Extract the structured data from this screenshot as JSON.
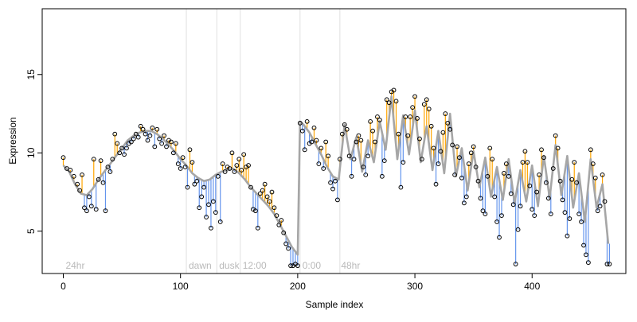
{
  "chart_data": {
    "type": "scatter",
    "xlabel": "Sample index",
    "ylabel": "Expression",
    "xlim": [
      -18,
      480
    ],
    "ylim": [
      2.3,
      19.2
    ],
    "x_ticks": [
      0,
      100,
      200,
      300,
      400
    ],
    "y_ticks": [
      5,
      10,
      15
    ],
    "grid": false,
    "colors": {
      "trend": "#a6a6a6",
      "above": "#ffa500",
      "below": "#6495ed",
      "points": "#000000",
      "separators": "#e0e0e0",
      "annotations": "#b9b9b9"
    },
    "annotations": [
      {
        "label": "24hr",
        "x": 2
      },
      {
        "label": "dawn",
        "x": 107
      },
      {
        "label": "dusk",
        "x": 133
      },
      {
        "label": "12:00",
        "x": 153
      },
      {
        "label": "0:00",
        "x": 204
      },
      {
        "label": "48hr",
        "x": 237
      }
    ],
    "separators_x": [
      105,
      131,
      151,
      202,
      236
    ],
    "trend": [
      [
        0,
        9.2
      ],
      [
        5,
        8.8
      ],
      [
        10,
        8.0
      ],
      [
        15,
        7.4
      ],
      [
        20,
        7.3
      ],
      [
        25,
        7.7
      ],
      [
        30,
        8.3
      ],
      [
        35,
        8.8
      ],
      [
        40,
        9.3
      ],
      [
        45,
        9.8
      ],
      [
        50,
        10.3
      ],
      [
        55,
        10.8
      ],
      [
        60,
        11.1
      ],
      [
        65,
        11.3
      ],
      [
        70,
        11.4
      ],
      [
        75,
        11.4
      ],
      [
        80,
        11.2
      ],
      [
        85,
        10.9
      ],
      [
        90,
        10.5
      ],
      [
        95,
        10.1
      ],
      [
        100,
        9.6
      ],
      [
        105,
        9.2
      ],
      [
        110,
        8.7
      ],
      [
        115,
        8.4
      ],
      [
        120,
        8.2
      ],
      [
        125,
        8.3
      ],
      [
        130,
        8.6
      ],
      [
        135,
        8.8
      ],
      [
        140,
        8.9
      ],
      [
        145,
        9.0
      ],
      [
        150,
        8.7
      ],
      [
        155,
        8.3
      ],
      [
        160,
        7.8
      ],
      [
        165,
        7.4
      ],
      [
        170,
        7.0
      ],
      [
        175,
        6.6
      ],
      [
        180,
        6.1
      ],
      [
        185,
        5.4
      ],
      [
        190,
        4.7
      ],
      [
        195,
        4.0
      ],
      [
        200,
        3.5
      ],
      [
        202,
        12.0
      ],
      [
        205,
        11.8
      ],
      [
        210,
        11.3
      ],
      [
        215,
        10.6
      ],
      [
        220,
        9.9
      ],
      [
        225,
        9.1
      ],
      [
        230,
        8.5
      ],
      [
        235,
        8.3
      ],
      [
        240,
        11.8
      ],
      [
        245,
        9.6
      ],
      [
        250,
        11.0
      ],
      [
        255,
        8.8
      ],
      [
        260,
        10.8
      ],
      [
        265,
        9.4
      ],
      [
        270,
        12.0
      ],
      [
        275,
        10.2
      ],
      [
        280,
        13.6
      ],
      [
        285,
        9.6
      ],
      [
        290,
        12.4
      ],
      [
        295,
        9.9
      ],
      [
        300,
        12.7
      ],
      [
        305,
        9.4
      ],
      [
        310,
        11.7
      ],
      [
        315,
        8.9
      ],
      [
        320,
        11.4
      ],
      [
        325,
        8.7
      ],
      [
        330,
        12.5
      ],
      [
        335,
        8.5
      ],
      [
        340,
        10.3
      ],
      [
        345,
        7.6
      ],
      [
        350,
        10.1
      ],
      [
        355,
        7.8
      ],
      [
        360,
        9.7
      ],
      [
        365,
        7.2
      ],
      [
        370,
        9.1
      ],
      [
        375,
        7.0
      ],
      [
        380,
        9.6
      ],
      [
        385,
        6.8
      ],
      [
        390,
        8.9
      ],
      [
        395,
        6.9
      ],
      [
        400,
        9.2
      ],
      [
        405,
        6.6
      ],
      [
        410,
        9.8
      ],
      [
        415,
        7.1
      ],
      [
        420,
        10.5
      ],
      [
        425,
        7.3
      ],
      [
        430,
        9.8
      ],
      [
        435,
        6.5
      ],
      [
        440,
        8.7
      ],
      [
        445,
        5.6
      ],
      [
        450,
        9.6
      ],
      [
        455,
        6.5
      ],
      [
        460,
        8.0
      ],
      [
        465,
        4.2
      ]
    ],
    "points": [
      [
        0,
        9.7
      ],
      [
        3,
        9.0
      ],
      [
        6,
        8.9
      ],
      [
        9,
        8.5
      ],
      [
        12,
        8.0
      ],
      [
        14,
        7.6
      ],
      [
        16,
        8.6
      ],
      [
        18,
        6.5
      ],
      [
        20,
        6.3
      ],
      [
        22,
        7.2
      ],
      [
        24,
        6.6
      ],
      [
        26,
        9.6
      ],
      [
        28,
        6.4
      ],
      [
        30,
        8.3
      ],
      [
        32,
        9.5
      ],
      [
        34,
        8.1
      ],
      [
        36,
        6.3
      ],
      [
        38,
        9.1
      ],
      [
        40,
        8.8
      ],
      [
        42,
        9.6
      ],
      [
        44,
        11.2
      ],
      [
        46,
        10.6
      ],
      [
        48,
        10.0
      ],
      [
        50,
        10.3
      ],
      [
        52,
        9.9
      ],
      [
        54,
        10.3
      ],
      [
        56,
        10.6
      ],
      [
        58,
        10.7
      ],
      [
        60,
        10.9
      ],
      [
        62,
        11.2
      ],
      [
        64,
        11.0
      ],
      [
        66,
        11.7
      ],
      [
        68,
        11.5
      ],
      [
        70,
        11.2
      ],
      [
        72,
        10.8
      ],
      [
        74,
        11.1
      ],
      [
        76,
        11.6
      ],
      [
        78,
        10.4
      ],
      [
        80,
        11.5
      ],
      [
        82,
        10.9
      ],
      [
        84,
        10.6
      ],
      [
        86,
        11.1
      ],
      [
        88,
        10.4
      ],
      [
        90,
        10.8
      ],
      [
        92,
        10.7
      ],
      [
        94,
        10.0
      ],
      [
        96,
        10.6
      ],
      [
        98,
        9.3
      ],
      [
        100,
        9.0
      ],
      [
        102,
        9.7
      ],
      [
        104,
        9.1
      ],
      [
        106,
        7.8
      ],
      [
        108,
        10.2
      ],
      [
        110,
        9.4
      ],
      [
        112,
        8.0
      ],
      [
        114,
        8.2
      ],
      [
        116,
        6.5
      ],
      [
        118,
        7.2
      ],
      [
        120,
        7.8
      ],
      [
        122,
        5.9
      ],
      [
        124,
        6.7
      ],
      [
        126,
        5.2
      ],
      [
        128,
        6.9
      ],
      [
        130,
        6.2
      ],
      [
        132,
        8.5
      ],
      [
        134,
        5.6
      ],
      [
        136,
        9.3
      ],
      [
        138,
        8.8
      ],
      [
        140,
        9.1
      ],
      [
        142,
        9.0
      ],
      [
        144,
        10.0
      ],
      [
        146,
        8.8
      ],
      [
        148,
        9.2
      ],
      [
        150,
        9.6
      ],
      [
        152,
        8.9
      ],
      [
        154,
        9.9
      ],
      [
        156,
        9.1
      ],
      [
        158,
        9.2
      ],
      [
        160,
        7.8
      ],
      [
        162,
        6.4
      ],
      [
        164,
        6.3
      ],
      [
        166,
        5.2
      ],
      [
        168,
        7.4
      ],
      [
        170,
        7.6
      ],
      [
        172,
        8.0
      ],
      [
        174,
        7.2
      ],
      [
        176,
        6.9
      ],
      [
        178,
        7.5
      ],
      [
        180,
        6.5
      ],
      [
        182,
        6.0
      ],
      [
        184,
        5.4
      ],
      [
        186,
        5.7
      ],
      [
        188,
        4.9
      ],
      [
        190,
        4.2
      ],
      [
        192,
        3.9
      ],
      [
        194,
        2.8
      ],
      [
        196,
        2.8
      ],
      [
        198,
        2.9
      ],
      [
        200,
        2.8
      ],
      [
        202,
        11.9
      ],
      [
        204,
        11.4
      ],
      [
        206,
        10.2
      ],
      [
        208,
        12.0
      ],
      [
        210,
        10.6
      ],
      [
        212,
        10.7
      ],
      [
        214,
        11.6
      ],
      [
        216,
        10.8
      ],
      [
        218,
        9.3
      ],
      [
        220,
        10.3
      ],
      [
        222,
        9.0
      ],
      [
        224,
        10.7
      ],
      [
        226,
        9.8
      ],
      [
        228,
        8.1
      ],
      [
        230,
        7.7
      ],
      [
        232,
        8.2
      ],
      [
        234,
        7.0
      ],
      [
        236,
        9.6
      ],
      [
        238,
        11.2
      ],
      [
        240,
        11.8
      ],
      [
        242,
        11.5
      ],
      [
        244,
        9.8
      ],
      [
        246,
        8.5
      ],
      [
        248,
        9.6
      ],
      [
        250,
        10.7
      ],
      [
        252,
        11.1
      ],
      [
        254,
        10.8
      ],
      [
        256,
        9.1
      ],
      [
        258,
        8.6
      ],
      [
        260,
        9.8
      ],
      [
        262,
        12.0
      ],
      [
        264,
        11.4
      ],
      [
        266,
        10.7
      ],
      [
        268,
        12.3
      ],
      [
        270,
        12.1
      ],
      [
        272,
        8.5
      ],
      [
        274,
        9.5
      ],
      [
        276,
        13.4
      ],
      [
        278,
        13.2
      ],
      [
        280,
        13.9
      ],
      [
        282,
        14.0
      ],
      [
        284,
        13.3
      ],
      [
        286,
        11.2
      ],
      [
        288,
        7.8
      ],
      [
        290,
        9.4
      ],
      [
        292,
        12.3
      ],
      [
        294,
        11.1
      ],
      [
        296,
        12.3
      ],
      [
        298,
        12.9
      ],
      [
        300,
        13.6
      ],
      [
        302,
        12.2
      ],
      [
        304,
        10.9
      ],
      [
        306,
        9.6
      ],
      [
        308,
        13.1
      ],
      [
        310,
        13.4
      ],
      [
        312,
        12.8
      ],
      [
        314,
        11.7
      ],
      [
        316,
        10.3
      ],
      [
        318,
        8.0
      ],
      [
        320,
        9.3
      ],
      [
        322,
        10.1
      ],
      [
        324,
        11.3
      ],
      [
        326,
        12.5
      ],
      [
        328,
        11.9
      ],
      [
        330,
        11.5
      ],
      [
        332,
        10.5
      ],
      [
        334,
        8.6
      ],
      [
        336,
        10.4
      ],
      [
        338,
        9.7
      ],
      [
        340,
        8.4
      ],
      [
        342,
        6.8
      ],
      [
        344,
        7.2
      ],
      [
        346,
        9.3
      ],
      [
        348,
        10.0
      ],
      [
        350,
        10.4
      ],
      [
        352,
        9.1
      ],
      [
        354,
        8.2
      ],
      [
        356,
        7.1
      ],
      [
        358,
        6.3
      ],
      [
        360,
        6.1
      ],
      [
        362,
        8.5
      ],
      [
        364,
        10.3
      ],
      [
        366,
        9.6
      ],
      [
        368,
        7.2
      ],
      [
        370,
        5.6
      ],
      [
        372,
        4.6
      ],
      [
        374,
        6.0
      ],
      [
        376,
        8.7
      ],
      [
        378,
        9.3
      ],
      [
        380,
        8.5
      ],
      [
        382,
        7.4
      ],
      [
        384,
        6.7
      ],
      [
        386,
        2.9
      ],
      [
        388,
        5.1
      ],
      [
        390,
        6.6
      ],
      [
        392,
        9.4
      ],
      [
        394,
        10.1
      ],
      [
        396,
        9.4
      ],
      [
        398,
        7.9
      ],
      [
        400,
        6.4
      ],
      [
        402,
        6.0
      ],
      [
        404,
        7.5
      ],
      [
        406,
        8.6
      ],
      [
        408,
        10.2
      ],
      [
        410,
        9.7
      ],
      [
        412,
        8.1
      ],
      [
        414,
        7.1
      ],
      [
        416,
        6.1
      ],
      [
        418,
        9.0
      ],
      [
        420,
        11.1
      ],
      [
        422,
        10.3
      ],
      [
        424,
        8.2
      ],
      [
        426,
        7.0
      ],
      [
        428,
        6.2
      ],
      [
        430,
        4.7
      ],
      [
        432,
        5.8
      ],
      [
        434,
        8.3
      ],
      [
        436,
        9.4
      ],
      [
        438,
        8.1
      ],
      [
        440,
        6.1
      ],
      [
        442,
        5.6
      ],
      [
        444,
        4.1
      ],
      [
        446,
        3.5
      ],
      [
        448,
        3.0
      ],
      [
        450,
        10.2
      ],
      [
        452,
        9.3
      ],
      [
        454,
        8.4
      ],
      [
        456,
        6.3
      ],
      [
        458,
        6.6
      ],
      [
        460,
        8.6
      ],
      [
        462,
        6.9
      ],
      [
        464,
        2.9
      ],
      [
        466,
        2.9
      ]
    ]
  }
}
